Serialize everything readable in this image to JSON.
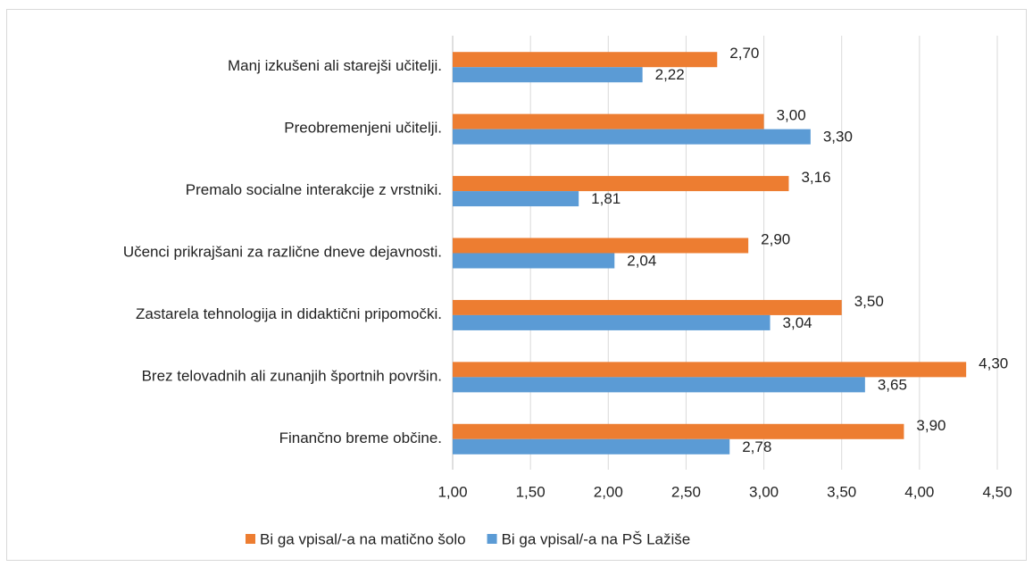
{
  "chart_data": {
    "type": "hbar",
    "categories": [
      "Manj izkušeni ali starejši učitelji.",
      "Preobremenjeni učitelji.",
      "Premalo socialne interakcije z vrstniki.",
      "Učenci prikrajšani za različne dneve dejavnosti.",
      "Zastarela tehnologija in didaktični pripomočki.",
      "Brez telovadnih ali zunanjih športnih površin.",
      "Finančno breme občine."
    ],
    "series": [
      {
        "name": "Bi ga vpisal/-a na matično šolo",
        "color": "#ed7d31",
        "values": [
          2.7,
          3.0,
          3.16,
          2.9,
          3.5,
          4.3,
          3.9
        ],
        "value_labels": [
          "2,70",
          "3,00",
          "3,16",
          "2,90",
          "3,50",
          "4,30",
          "3,90"
        ]
      },
      {
        "name": "Bi ga vpisal/-a na PŠ Lažiše",
        "color": "#5b9bd5",
        "values": [
          2.22,
          3.3,
          1.81,
          2.04,
          3.04,
          3.65,
          2.78
        ],
        "value_labels": [
          "2,22",
          "3,30",
          "1,81",
          "2,04",
          "3,04",
          "3,65",
          "2,78"
        ]
      }
    ],
    "xlim": [
      1.0,
      4.5
    ],
    "xticks": [
      {
        "value": 1.0,
        "label": "1,00"
      },
      {
        "value": 1.5,
        "label": "1,50"
      },
      {
        "value": 2.0,
        "label": "2,00"
      },
      {
        "value": 2.5,
        "label": "2,50"
      },
      {
        "value": 3.0,
        "label": "3,00"
      },
      {
        "value": 3.5,
        "label": "3,50"
      },
      {
        "value": 4.0,
        "label": "4,00"
      },
      {
        "value": 4.5,
        "label": "4,50"
      }
    ],
    "grid": true,
    "legend": "bottom"
  }
}
